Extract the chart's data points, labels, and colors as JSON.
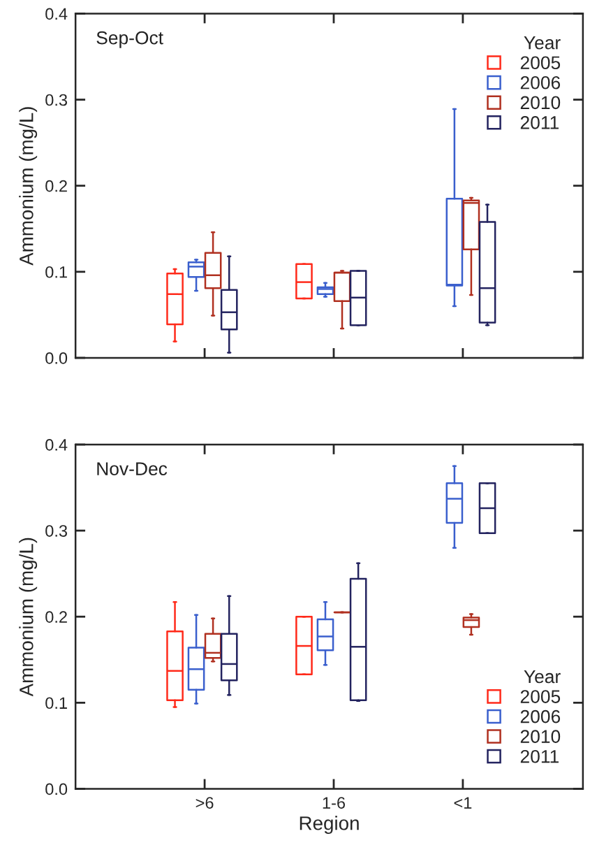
{
  "chart_data": [
    {
      "type": "box",
      "title": "Sep-Oct",
      "ylabel": "Ammonium (mg/L)",
      "legend_title": "Year",
      "legend": "top right",
      "tick_labels": "y",
      "categories": [
        null,
        null,
        null
      ],
      "ylim": [
        0,
        0.4
      ],
      "yticks": [
        {
          "value": 0,
          "label": "0.0"
        },
        0.1,
        0.2,
        0.3,
        0.4
      ],
      "grid": false,
      "series": [
        {
          "name": "2005",
          "color": "#ff2a1a",
          "boxes": [
            {
              "low": 0.019,
              "q1": 0.039,
              "median": 0.074,
              "q3": 0.098,
              "high": 0.103
            },
            {
              "low": 0.069,
              "q1": 0.069,
              "median": 0.088,
              "q3": 0.109,
              "high": 0.109
            },
            null
          ]
        },
        {
          "name": "2006",
          "color": "#3a5fcd",
          "boxes": [
            {
              "low": 0.078,
              "q1": 0.094,
              "median": 0.106,
              "q3": 0.111,
              "high": 0.114
            },
            {
              "low": 0.071,
              "q1": 0.074,
              "median": 0.08,
              "q3": 0.082,
              "high": 0.087
            },
            {
              "low": 0.06,
              "q1": 0.084,
              "median": 0.085,
              "q3": 0.185,
              "high": 0.289
            }
          ]
        },
        {
          "name": "2010",
          "color": "#b03020",
          "boxes": [
            {
              "low": 0.049,
              "q1": 0.081,
              "median": 0.096,
              "q3": 0.122,
              "high": 0.146
            },
            {
              "low": 0.034,
              "q1": 0.066,
              "median": 0.099,
              "q3": 0.099,
              "high": 0.101
            },
            {
              "low": 0.073,
              "q1": 0.126,
              "median": 0.18,
              "q3": 0.183,
              "high": 0.186
            }
          ]
        },
        {
          "name": "2011",
          "color": "#23235f",
          "boxes": [
            {
              "low": 0.006,
              "q1": 0.033,
              "median": 0.053,
              "q3": 0.079,
              "high": 0.118
            },
            {
              "low": 0.038,
              "q1": 0.038,
              "median": 0.07,
              "q3": 0.101,
              "high": 0.101
            },
            {
              "low": 0.038,
              "q1": 0.041,
              "median": 0.081,
              "q3": 0.158,
              "high": 0.178
            }
          ]
        }
      ]
    },
    {
      "type": "box",
      "title": "Nov-Dec",
      "xlabel": "Region",
      "ylabel": "Ammonium (mg/L)",
      "legend_title": "Year",
      "legend": "bottom right",
      "categories": [
        ">6",
        "1-6",
        "<1"
      ],
      "ylim": [
        0,
        0.4
      ],
      "yticks": [
        {
          "value": 0,
          "label": "0.0"
        },
        0.1,
        0.2,
        0.3,
        0.4
      ],
      "grid": false,
      "series": [
        {
          "name": "2005",
          "color": "#ff2a1a",
          "boxes": [
            {
              "low": 0.095,
              "q1": 0.103,
              "median": 0.137,
              "q3": 0.183,
              "high": 0.217
            },
            {
              "low": 0.133,
              "q1": 0.133,
              "median": 0.166,
              "q3": 0.2,
              "high": 0.2
            },
            null
          ]
        },
        {
          "name": "2006",
          "color": "#3a5fcd",
          "boxes": [
            {
              "low": 0.099,
              "q1": 0.115,
              "median": 0.139,
              "q3": 0.164,
              "high": 0.202
            },
            {
              "low": 0.144,
              "q1": 0.161,
              "median": 0.177,
              "q3": 0.197,
              "high": 0.217
            },
            {
              "low": 0.28,
              "q1": 0.309,
              "median": 0.337,
              "q3": 0.355,
              "high": 0.375
            }
          ]
        },
        {
          "name": "2010",
          "color": "#b03020",
          "boxes": [
            {
              "low": 0.148,
              "q1": 0.152,
              "median": 0.158,
              "q3": 0.18,
              "high": 0.198
            },
            {
              "low": 0.205,
              "q1": 0.205,
              "median": 0.205,
              "q3": 0.205,
              "high": 0.205
            },
            {
              "low": 0.179,
              "q1": 0.188,
              "median": 0.196,
              "q3": 0.199,
              "high": 0.203
            }
          ]
        },
        {
          "name": "2011",
          "color": "#23235f",
          "boxes": [
            {
              "low": 0.109,
              "q1": 0.126,
              "median": 0.145,
              "q3": 0.18,
              "high": 0.224
            },
            {
              "low": 0.102,
              "q1": 0.103,
              "median": 0.165,
              "q3": 0.244,
              "high": 0.262
            },
            {
              "low": 0.297,
              "q1": 0.297,
              "median": 0.326,
              "q3": 0.355,
              "high": 0.355
            }
          ]
        }
      ]
    }
  ]
}
